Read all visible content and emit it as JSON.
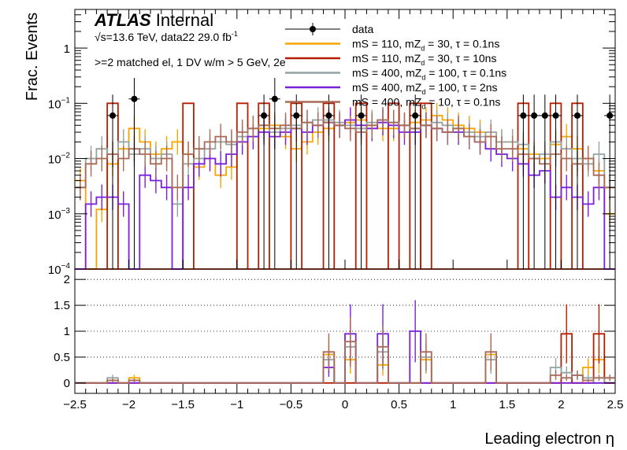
{
  "chart_data": [
    {
      "type": "step-histogram",
      "panel": "top",
      "title": "ATLAS Internal",
      "atlas_label": "ATLAS",
      "atlas_status": "Internal",
      "energy_text": "√s=13.6 TeV, data22 29.0 fb",
      "lumi_exponent": "-1",
      "selection_text": ">=2 matched el, 1 DV w/m > 5 GeV, 2e",
      "ylabel": "Frac. Events",
      "yscale": "log",
      "ylim": [
        0.0001,
        5
      ],
      "y_ticks": [
        {
          "value": 1,
          "label": "1"
        },
        {
          "value": 0.1,
          "label": "10",
          "exp": "−1"
        },
        {
          "value": 0.01,
          "label": "10",
          "exp": "−2"
        },
        {
          "value": 0.001,
          "label": "10",
          "exp": "−3"
        },
        {
          "value": 0.0001,
          "label": "10",
          "exp": "−4"
        }
      ],
      "xlim": [
        -2.5,
        2.5
      ],
      "bins": 50,
      "data_points": [
        {
          "x": -2.15,
          "y": 0.06
        },
        {
          "x": -1.95,
          "y": 0.12
        },
        {
          "x": -0.75,
          "y": 0.06
        },
        {
          "x": -0.65,
          "y": 0.12
        },
        {
          "x": -0.45,
          "y": 0.06
        },
        {
          "x": -0.15,
          "y": 0.06
        },
        {
          "x": 0.15,
          "y": 0.06
        },
        {
          "x": 0.65,
          "y": 0.06
        },
        {
          "x": 1.65,
          "y": 0.06
        },
        {
          "x": 1.75,
          "y": 0.06
        },
        {
          "x": 1.85,
          "y": 0.06
        },
        {
          "x": 1.95,
          "y": 0.06
        },
        {
          "x": 2.15,
          "y": 0.06
        },
        {
          "x": 2.45,
          "y": 0.06
        }
      ],
      "series": [
        {
          "name": "data",
          "legend": "data",
          "color": "#000000",
          "style": "marker"
        },
        {
          "name": "orange",
          "legend": "mS = 110, mZ",
          "legend_sub": "d",
          "legend_rest": " = 30, τ = 0.1ns",
          "color": "#f7a600",
          "values": [
            0.004,
            0.0001,
            0.0012,
            0.008,
            0.015,
            0.035,
            0.02,
            0.012,
            0.015,
            0.02,
            0.012,
            0.007,
            0.01,
            0.005,
            0.007,
            0.02,
            0.025,
            0.035,
            0.04,
            0.025,
            0.015,
            0.02,
            0.03,
            0.035,
            0.04,
            0.045,
            0.05,
            0.04,
            0.035,
            0.035,
            0.04,
            0.045,
            0.05,
            0.06,
            0.05,
            0.04,
            0.035,
            0.03,
            0.025,
            0.02,
            0.02,
            0.015,
            0.012,
            0.01,
            0.018,
            0.025,
            0.015,
            0.01,
            0.006,
            0.001
          ]
        },
        {
          "name": "red",
          "legend": "mS = 110, mZ",
          "legend_sub": "d",
          "legend_rest": " = 30, τ = 10ns",
          "color": "#b51f00",
          "values": [
            0.0001,
            0.0001,
            0.0001,
            0.0001,
            0.0001,
            0.0001,
            0.0001,
            0.0001,
            0.0001,
            0.0001,
            0.0001,
            0.0001,
            0.0001,
            0.0001,
            0.0001,
            0.0001,
            0.0001,
            0.0001,
            0.0001,
            0.0001,
            0.0001,
            0.0001,
            0.0001,
            0.0001,
            0.0001,
            0.0001,
            0.0001,
            0.0001,
            0.0001,
            0.0001,
            0.0001,
            0.0001,
            0.0001,
            0.0001,
            0.0001,
            0.0001,
            0.0001,
            0.0001,
            0.0001,
            0.0001,
            0.0001,
            0.0001,
            0.0001,
            0.0001,
            0.0001,
            0.0001,
            0.0001,
            0.0001,
            0.0001,
            0.0001
          ],
          "spikes": [
            {
              "x": -2.15,
              "y": 0.1
            },
            {
              "x": -1.45,
              "y": 0.1
            },
            {
              "x": -0.95,
              "y": 0.1
            },
            {
              "x": -0.75,
              "y": 0.1
            },
            {
              "x": -0.45,
              "y": 0.1
            },
            {
              "x": -0.15,
              "y": 0.1
            },
            {
              "x": 0.15,
              "y": 0.1
            },
            {
              "x": 0.45,
              "y": 0.1
            },
            {
              "x": 0.65,
              "y": 0.1
            },
            {
              "x": 0.75,
              "y": 0.1
            },
            {
              "x": 1.65,
              "y": 0.1
            },
            {
              "x": 1.95,
              "y": 0.1
            },
            {
              "x": 2.15,
              "y": 0.1
            }
          ]
        },
        {
          "name": "gray",
          "legend": "mS = 400, mZ",
          "legend_sub": "d",
          "legend_rest": " = 100, τ = 0.1ns",
          "color": "#94a4a2",
          "values": [
            0.003,
            0.01,
            0.015,
            0.012,
            0.02,
            0.012,
            0.015,
            0.01,
            0.012,
            0.0015,
            0.008,
            0.01,
            0.015,
            0.02,
            0.018,
            0.025,
            0.035,
            0.04,
            0.03,
            0.035,
            0.04,
            0.045,
            0.05,
            0.05,
            0.045,
            0.04,
            0.035,
            0.045,
            0.05,
            0.045,
            0.04,
            0.035,
            0.04,
            0.045,
            0.04,
            0.035,
            0.03,
            0.025,
            0.03,
            0.02,
            0.02,
            0.018,
            0.01,
            0.012,
            0.02,
            0.015,
            0.01,
            0.008,
            0.012,
            0.003
          ]
        },
        {
          "name": "purple",
          "legend": "mS = 400, mZ",
          "legend_sub": "d",
          "legend_rest": " = 100, τ = 2ns",
          "color": "#7a21dd",
          "values": [
            0.0001,
            0.0015,
            0.002,
            0.002,
            0.0015,
            0.0001,
            0.005,
            0.004,
            0.003,
            0.0001,
            0.003,
            0.008,
            0.01,
            0.008,
            0.012,
            0.02,
            0.025,
            0.03,
            0.025,
            0.03,
            0.035,
            0.03,
            0.04,
            0.045,
            0.04,
            0.05,
            0.04,
            0.035,
            0.045,
            0.04,
            0.03,
            0.03,
            0.04,
            0.035,
            0.03,
            0.03,
            0.025,
            0.02,
            0.015,
            0.012,
            0.01,
            0.008,
            0.005,
            0.006,
            0.002,
            0.003,
            0.002,
            0.0015,
            0.003,
            0.0001
          ]
        },
        {
          "name": "brown",
          "legend": "mS = 400, mZ",
          "legend_sub": "d",
          "legend_rest": " = 10, τ = 0.1ns",
          "color": "#a96b59",
          "values": [
            0.003,
            0.008,
            0.01,
            0.012,
            0.01,
            0.015,
            0.012,
            0.008,
            0.01,
            0.003,
            0.012,
            0.015,
            0.02,
            0.025,
            0.02,
            0.03,
            0.035,
            0.04,
            0.035,
            0.04,
            0.035,
            0.045,
            0.04,
            0.045,
            0.04,
            0.035,
            0.03,
            0.04,
            0.05,
            0.045,
            0.04,
            0.035,
            0.04,
            0.035,
            0.03,
            0.035,
            0.025,
            0.02,
            0.025,
            0.015,
            0.015,
            0.012,
            0.01,
            0.008,
            0.012,
            0.01,
            0.008,
            0.01,
            0.005,
            0.003
          ]
        }
      ]
    },
    {
      "type": "step-histogram",
      "panel": "ratio",
      "xlabel": "Leading electron η",
      "xlim": [
        -2.5,
        2.5
      ],
      "ylim": [
        -0.2,
        2.2
      ],
      "x_ticks": [
        -2.5,
        -2,
        -1.5,
        -1,
        -0.5,
        0,
        0.5,
        1,
        1.5,
        2,
        2.5
      ],
      "x_tick_labels": [
        "−2.5",
        "−2",
        "−1.5",
        "−1",
        "−0.5",
        "0",
        "0.5",
        "1",
        "1.5",
        "2",
        "2.5"
      ],
      "y_ticks": [
        0,
        0.5,
        1,
        1.5,
        2
      ],
      "y_tick_labels": [
        "0",
        "0.5",
        "1",
        "1.5",
        "2"
      ],
      "gridlines": [
        0.5,
        1,
        1.5,
        2
      ],
      "series": [
        {
          "name": "orange",
          "values": [
            0,
            0,
            0,
            0.05,
            0,
            0.1,
            0,
            0,
            0,
            0,
            0,
            0,
            0,
            0,
            0,
            0,
            0,
            0,
            0,
            0,
            0,
            0,
            0,
            0.55,
            0,
            0.45,
            0,
            0,
            0.35,
            0,
            0,
            0,
            0.45,
            0,
            0,
            0,
            0,
            0,
            0.55,
            0,
            0,
            0,
            0,
            0,
            0,
            0,
            0,
            0.3,
            0.45,
            0
          ]
        },
        {
          "name": "red",
          "values": [
            0,
            0,
            0,
            0,
            0,
            0,
            0,
            0,
            0,
            0,
            0,
            0,
            0,
            0,
            0,
            0,
            0,
            0,
            0,
            0,
            0,
            0,
            0,
            0,
            0,
            0,
            0,
            0,
            0,
            0,
            0,
            0,
            0,
            0,
            0,
            0,
            0,
            0,
            0,
            0,
            0,
            0,
            0,
            0,
            0,
            0.95,
            0,
            0,
            0.95,
            0
          ]
        },
        {
          "name": "gray",
          "values": [
            0,
            0,
            0,
            0.1,
            0,
            0.05,
            0,
            0,
            0,
            0,
            0,
            0,
            0,
            0,
            0,
            0,
            0,
            0,
            0,
            0,
            0,
            0,
            0,
            0.45,
            0,
            0.7,
            0,
            0,
            0.6,
            0,
            0,
            0,
            0.5,
            0,
            0,
            0,
            0,
            0,
            0.45,
            0,
            0,
            0,
            0,
            0,
            0.3,
            0.2,
            0.15,
            0.1,
            0,
            0.1
          ]
        },
        {
          "name": "purple",
          "values": [
            0,
            0,
            0,
            0,
            0,
            0,
            0,
            0,
            0,
            0,
            0,
            0,
            0,
            0,
            0,
            0,
            0,
            0,
            0,
            0,
            0,
            0,
            0,
            0.3,
            0,
            0.95,
            0,
            0,
            0.95,
            0,
            0,
            1.0,
            0,
            0,
            0,
            0,
            0,
            0,
            0,
            0,
            0,
            0,
            0,
            0,
            0,
            0,
            0,
            0,
            0,
            0
          ]
        },
        {
          "name": "brown",
          "values": [
            0,
            0,
            0,
            0.05,
            0,
            0.05,
            0,
            0,
            0,
            0,
            0,
            0,
            0,
            0,
            0,
            0,
            0,
            0,
            0,
            0,
            0,
            0,
            0,
            0.6,
            0,
            0.8,
            0,
            0,
            0.7,
            0,
            0,
            0,
            0.6,
            0,
            0,
            0,
            0,
            0,
            0.6,
            0,
            0,
            0,
            0,
            0,
            0.15,
            0.1,
            0.15,
            0.05,
            0.1,
            0.1
          ]
        }
      ]
    }
  ]
}
